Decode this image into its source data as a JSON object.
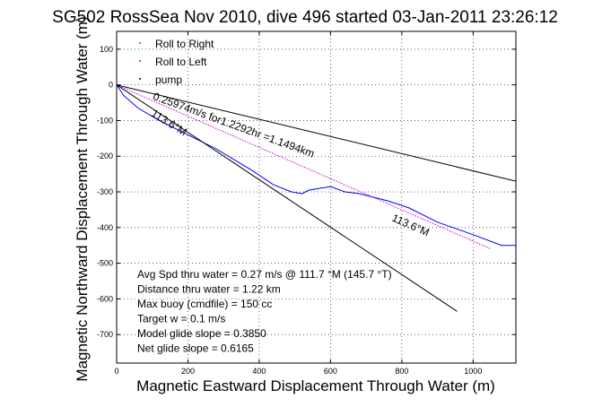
{
  "chart_data": {
    "type": "line",
    "title": "SG502 RossSea Nov 2010, dive 496 started 03-Jan-2011 23:26:12",
    "xlabel": "Magnetic Eastward Displacement Through Water (m)",
    "ylabel": "Magnetic Northward Displacement Through Water (m)",
    "xlim": [
      0,
      1120
    ],
    "ylim": [
      -780,
      150
    ],
    "xticks": [
      0,
      200,
      400,
      600,
      800,
      1000
    ],
    "yticks": [
      100,
      0,
      -100,
      -200,
      -300,
      -400,
      -500,
      -600,
      -700
    ],
    "grid": true,
    "legend": {
      "placement": "top-left",
      "entries": [
        {
          "label": "Roll to Right",
          "color": "#00a000",
          "marker": "dot"
        },
        {
          "label": "Roll to Left",
          "color": "#ff0000",
          "marker": "dot"
        },
        {
          "label": "pump",
          "color": "#000000",
          "marker": "dot"
        }
      ]
    },
    "series": [
      {
        "color": "#0000ff",
        "style": "solid",
        "x": [
          0,
          20,
          60,
          120,
          200,
          280,
          330,
          380,
          440,
          490,
          520,
          540,
          600,
          640,
          680,
          760,
          820,
          900,
          1000,
          1080,
          1120
        ],
        "y": [
          0,
          -30,
          -65,
          -100,
          -140,
          -180,
          -210,
          -240,
          -280,
          -300,
          -305,
          -295,
          -285,
          -300,
          -305,
          -325,
          -345,
          -385,
          -420,
          -450,
          -450
        ]
      },
      {
        "color": "#cc00cc",
        "style": "dashed",
        "x": [
          0,
          1050
        ],
        "y": [
          0,
          -460
        ]
      },
      {
        "color": "#000000",
        "style": "solid",
        "x": [
          0,
          1120
        ],
        "y": [
          0,
          -270
        ]
      },
      {
        "color": "#000000",
        "style": "solid",
        "x": [
          0,
          955
        ],
        "y": [
          0,
          -635
        ]
      }
    ],
    "annotations": [
      {
        "text": "0.25974m/s for1.2292hr =1.1494km",
        "x": 100,
        "y": -40,
        "angle": 20
      },
      {
        "text": "113.6°M",
        "x": 95,
        "y": -85,
        "angle": 32
      },
      {
        "text": "113.6°M",
        "x": 770,
        "y": -380,
        "angle": 24
      }
    ],
    "info_lines": [
      "Avg Spd thru water =  0.27 m/s @ 111.7    °M (145.7 °T)",
      "Distance thru water =  1.22 km",
      "Max buoy (cmdfile) = 150 cc",
      "Target w = 0.1 m/s",
      "Model glide slope = 0.3850",
      "Net glide slope = 0.6165"
    ]
  }
}
